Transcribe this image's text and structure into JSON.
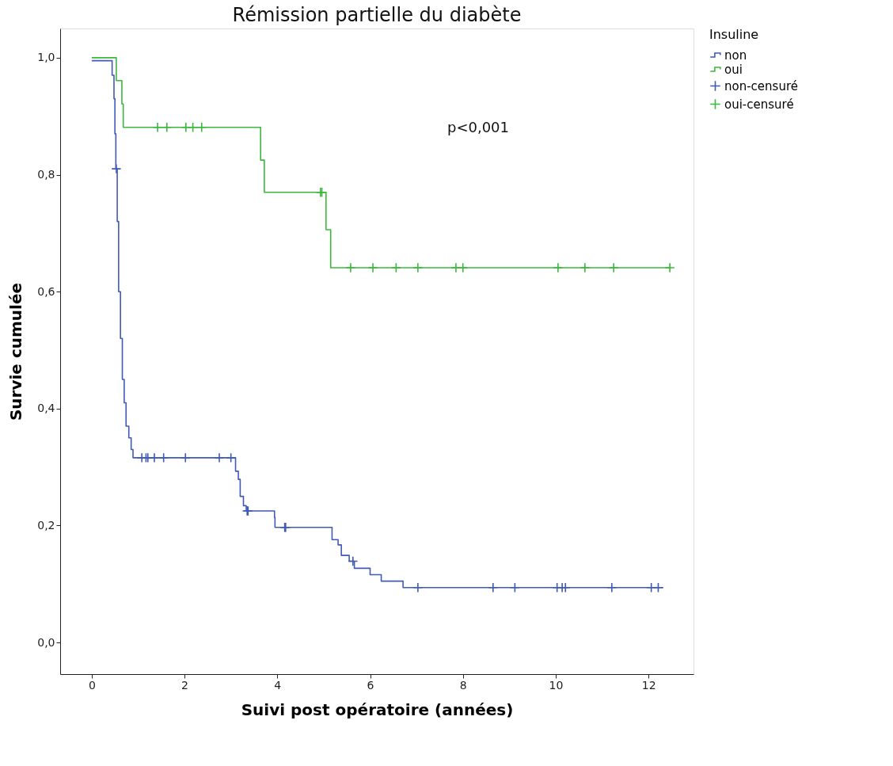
{
  "chart_data": {
    "type": "step",
    "title": "Rémission partielle du diabète",
    "xlabel": "Suivi post opératoire (années)",
    "ylabel": "Survie cumulée",
    "legend_title": "Insuline",
    "legend": "top right",
    "grid": false,
    "xlim": [
      -0.68,
      12.97
    ],
    "xticks": [
      0,
      2,
      4,
      6,
      8,
      10,
      12
    ],
    "ylim": [
      -0.054,
      1.05
    ],
    "yticks": [
      {
        "value": 0,
        "label": "0,0"
      },
      {
        "value": 0.2,
        "label": "0,2"
      },
      {
        "value": 0.4,
        "label": "0,4"
      },
      {
        "value": 0.6,
        "label": "0,6"
      },
      {
        "value": 0.8,
        "label": "0,8"
      },
      {
        "value": 1.0,
        "label": "1,0"
      }
    ],
    "annotations": [
      "p<0,001"
    ],
    "series": [
      {
        "name": "non",
        "color": "#3f5bb5",
        "x": [
          0,
          0.44,
          0.48,
          0.5,
          0.52,
          0.55,
          0.58,
          0.62,
          0.66,
          0.7,
          0.74,
          0.8,
          0.85,
          0.89,
          3.1,
          3.16,
          3.2,
          3.27,
          3.33,
          3.94,
          3.95,
          5.18,
          5.31,
          5.38,
          5.55,
          5.66,
          6.0,
          6.24,
          6.71,
          12.32
        ],
        "values": [
          0.995,
          0.97,
          0.93,
          0.87,
          0.81,
          0.72,
          0.6,
          0.52,
          0.45,
          0.41,
          0.37,
          0.35,
          0.33,
          0.316,
          0.293,
          0.279,
          0.25,
          0.234,
          0.225,
          0.214,
          0.197,
          0.176,
          0.167,
          0.149,
          0.139,
          0.127,
          0.116,
          0.105,
          0.094,
          0.094
        ]
      },
      {
        "name": "oui",
        "color": "#3cb83c",
        "x": [
          0,
          0.53,
          0.65,
          0.68,
          3.64,
          3.72,
          5.05,
          5.15,
          12.46
        ],
        "values": [
          1.0,
          0.961,
          0.921,
          0.881,
          0.825,
          0.77,
          0.706,
          0.641,
          0.641
        ]
      },
      {
        "name": "non-censuré",
        "type": "scatter",
        "marker": "cross",
        "color": "#3f5bb5",
        "x": [
          0.53,
          1.08,
          1.17,
          1.21,
          1.35,
          1.55,
          2.02,
          2.75,
          3.0,
          3.35,
          3.37,
          4.16,
          4.18,
          5.63,
          7.03,
          8.65,
          9.12,
          10.03,
          10.14,
          10.21,
          11.21,
          12.06,
          12.21
        ],
        "values": [
          0.81,
          0.316,
          0.316,
          0.316,
          0.316,
          0.316,
          0.316,
          0.316,
          0.316,
          0.225,
          0.225,
          0.197,
          0.197,
          0.139,
          0.094,
          0.094,
          0.094,
          0.094,
          0.094,
          0.094,
          0.094,
          0.094,
          0.094
        ]
      },
      {
        "name": "oui-censuré",
        "type": "scatter",
        "marker": "cross",
        "color": "#3cb83c",
        "x": [
          1.42,
          1.62,
          2.03,
          2.18,
          2.37,
          4.93,
          4.96,
          5.58,
          6.06,
          6.56,
          7.03,
          7.85,
          8.0,
          10.05,
          10.63,
          11.25,
          12.46
        ],
        "values": [
          0.881,
          0.881,
          0.881,
          0.881,
          0.881,
          0.77,
          0.77,
          0.641,
          0.641,
          0.641,
          0.641,
          0.641,
          0.641,
          0.641,
          0.641,
          0.641,
          0.641
        ]
      }
    ]
  }
}
